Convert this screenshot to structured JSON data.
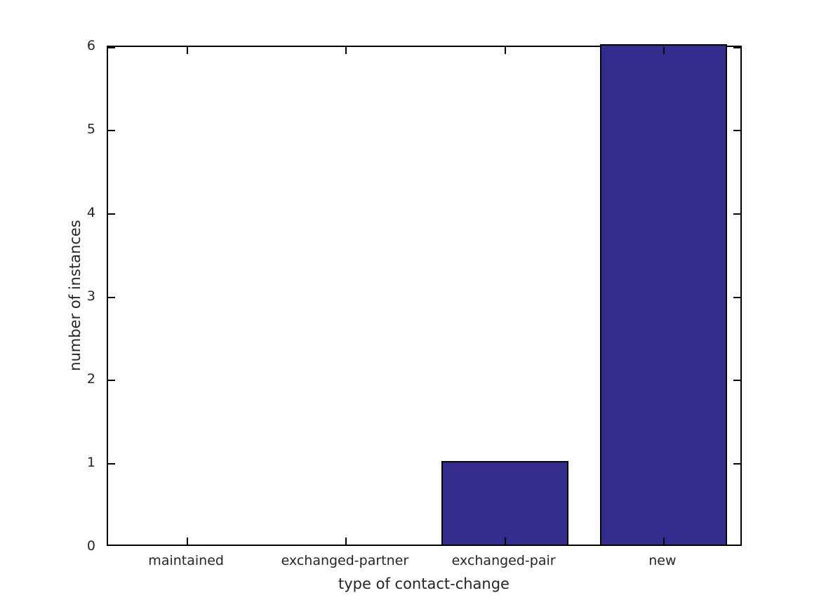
{
  "chart_data": {
    "type": "bar",
    "title": "",
    "categories": [
      "maintained",
      "exchanged-partner",
      "exchanged-pair",
      "new"
    ],
    "values": [
      0,
      0,
      1,
      6
    ],
    "xlabel": "type of contact-change",
    "ylabel": "number of instances",
    "ylim": [
      0,
      6
    ],
    "yticks": [
      0,
      1,
      2,
      3,
      4,
      5,
      6
    ],
    "bar_width_fraction": 0.8,
    "bar_color": "#342C8C",
    "bar_edge_color": "#000000",
    "axis_color": "#000000",
    "text_color": "#262626",
    "background_color": "#ffffff",
    "grid": false,
    "legend": null
  }
}
